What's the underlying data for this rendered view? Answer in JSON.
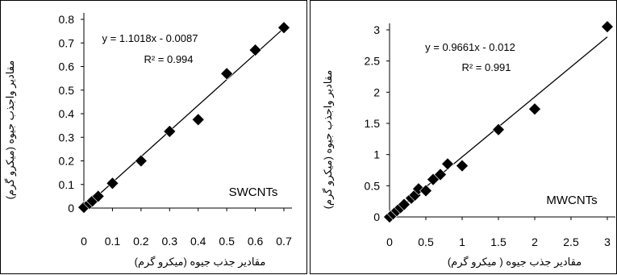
{
  "chart_data": [
    {
      "type": "scatter",
      "label": "SWCNTs",
      "xlabel": "مقادیر جذب جیوه (میکرو گرم)",
      "ylabel": "مقادیر واجذب جیوه (میکرو گرم)",
      "xlim": [
        0,
        0.7
      ],
      "ylim": [
        0,
        0.8
      ],
      "xticks": [
        "0",
        "0.1",
        "0.2",
        "0.3",
        "0.4",
        "0.5",
        "0.6",
        "0.7"
      ],
      "yticks": [
        "0",
        "0.1",
        "0.2",
        "0.3",
        "0.4",
        "0.5",
        "0.6",
        "0.7",
        "0.8"
      ],
      "xtick_values": [
        0,
        0.1,
        0.2,
        0.3,
        0.4,
        0.5,
        0.6,
        0.7
      ],
      "ytick_values": [
        0,
        0.1,
        0.2,
        0.3,
        0.4,
        0.5,
        0.6,
        0.7,
        0.8
      ],
      "points": [
        {
          "x": 0,
          "y": 0.003
        },
        {
          "x": 0.02,
          "y": 0.02
        },
        {
          "x": 0.03,
          "y": 0.03
        },
        {
          "x": 0.05,
          "y": 0.05
        },
        {
          "x": 0.1,
          "y": 0.105
        },
        {
          "x": 0.2,
          "y": 0.2
        },
        {
          "x": 0.3,
          "y": 0.325
        },
        {
          "x": 0.4,
          "y": 0.375
        },
        {
          "x": 0.5,
          "y": 0.57
        },
        {
          "x": 0.6,
          "y": 0.67
        },
        {
          "x": 0.7,
          "y": 0.765
        }
      ],
      "trendline": {
        "slope": 1.1018,
        "intercept": -0.0087
      },
      "equation": "y = 1.1018x - 0.0087",
      "r2": "R² = 0.994",
      "marker_color": "#000000"
    },
    {
      "type": "scatter",
      "label": "MWCNTs",
      "xlabel": "مقادیر جذب جیوه ( میکرو گرم)",
      "ylabel": "مقادیر واجذب جیوه (میکرو گرم)",
      "xlim": [
        0,
        3
      ],
      "ylim": [
        0,
        3
      ],
      "xticks": [
        "0",
        "0.5",
        "1",
        "1.5",
        "2",
        "2.5",
        "3"
      ],
      "yticks": [
        "0",
        "0.5",
        "1",
        "1.5",
        "2",
        "2.5",
        "3"
      ],
      "xtick_values": [
        0,
        0.5,
        1,
        1.5,
        2,
        2.5,
        3
      ],
      "ytick_values": [
        0,
        0.5,
        1,
        1.5,
        2,
        2.5,
        3
      ],
      "points": [
        {
          "x": 0,
          "y": 0
        },
        {
          "x": 0.05,
          "y": 0.05
        },
        {
          "x": 0.1,
          "y": 0.1
        },
        {
          "x": 0.15,
          "y": 0.15
        },
        {
          "x": 0.2,
          "y": 0.2
        },
        {
          "x": 0.3,
          "y": 0.3
        },
        {
          "x": 0.35,
          "y": 0.35
        },
        {
          "x": 0.4,
          "y": 0.45
        },
        {
          "x": 0.5,
          "y": 0.42
        },
        {
          "x": 0.6,
          "y": 0.6
        },
        {
          "x": 0.7,
          "y": 0.68
        },
        {
          "x": 0.8,
          "y": 0.85
        },
        {
          "x": 1.0,
          "y": 0.82
        },
        {
          "x": 1.5,
          "y": 1.4
        },
        {
          "x": 2.0,
          "y": 1.73
        },
        {
          "x": 3.0,
          "y": 3.05
        }
      ],
      "trendline": {
        "slope": 0.9661,
        "intercept": -0.012
      },
      "equation": "y = 0.9661x - 0.012",
      "r2": "R² = 0.991",
      "marker_color": "#000000"
    }
  ]
}
